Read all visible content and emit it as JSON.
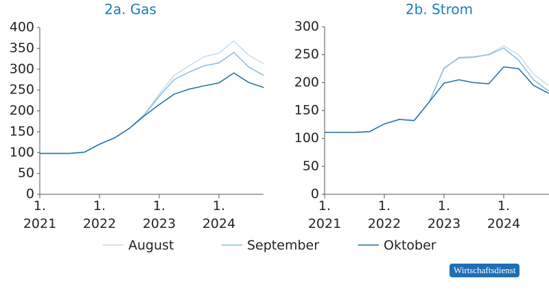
{
  "chart_data": [
    {
      "type": "line",
      "title": "2a. Gas",
      "categories": [
        "1.\n2021",
        null,
        null,
        null,
        "1.\n2022",
        null,
        null,
        null,
        "1.\n2023",
        null,
        null,
        null,
        "1.\n2024",
        null,
        null,
        null
      ],
      "series": [
        {
          "name": "August",
          "color": "#c6dcec",
          "values": [
            98,
            98,
            98,
            101,
            120,
            135,
            158,
            192,
            240,
            285,
            308,
            330,
            338,
            368,
            333,
            313
          ]
        },
        {
          "name": "September",
          "color": "#8dbcdc",
          "values": [
            98,
            98,
            98,
            101,
            120,
            135,
            158,
            190,
            235,
            275,
            293,
            308,
            315,
            340,
            305,
            285
          ]
        },
        {
          "name": "Oktober",
          "color": "#1b6ea8",
          "values": [
            98,
            98,
            98,
            101,
            120,
            135,
            158,
            188,
            215,
            240,
            252,
            260,
            267,
            291,
            268,
            256
          ]
        }
      ],
      "ylim": [
        0,
        400
      ],
      "yticks": [
        0,
        50,
        100,
        150,
        200,
        250,
        300,
        350,
        400
      ]
    },
    {
      "type": "line",
      "title": "2b. Strom",
      "categories": [
        "1.\n2021",
        null,
        null,
        null,
        "1.\n2022",
        null,
        null,
        null,
        "1.\n2023",
        null,
        null,
        null,
        "1.\n2024",
        null,
        null,
        null
      ],
      "series": [
        {
          "name": "August",
          "color": "#c6dcec",
          "values": [
            111,
            111,
            111,
            112,
            126,
            134,
            132,
            165,
            227,
            243,
            245,
            251,
            266,
            250,
            215,
            195
          ]
        },
        {
          "name": "September",
          "color": "#8dbcdc",
          "values": [
            111,
            111,
            111,
            112,
            126,
            134,
            132,
            165,
            225,
            245,
            246,
            250,
            262,
            240,
            205,
            185
          ]
        },
        {
          "name": "Oktober",
          "color": "#1b6ea8",
          "values": [
            111,
            111,
            111,
            112,
            126,
            134,
            132,
            165,
            199,
            205,
            200,
            198,
            228,
            225,
            195,
            181
          ]
        }
      ],
      "ylim": [
        0,
        300
      ],
      "yticks": [
        0,
        50,
        100,
        150,
        200,
        250,
        300
      ]
    }
  ],
  "badge": "Wirtschaftsdienst"
}
